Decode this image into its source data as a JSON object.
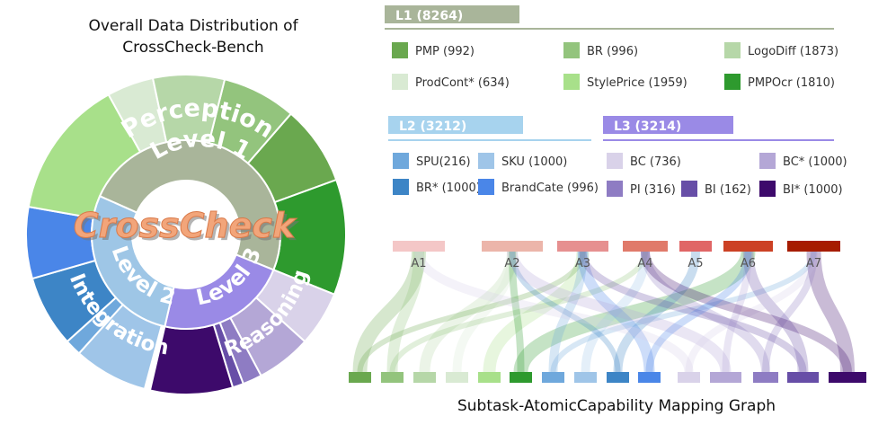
{
  "title_line1": "Overall Data Distribution of",
  "title_line2": "CrossCheck-Bench",
  "center_text": "CrossCheck",
  "levels": [
    {
      "label": "Level 1",
      "outer_label": "Perception",
      "color": "#a9b59a"
    },
    {
      "label": "Level 2",
      "outer_label": "Integration",
      "color": "#9ec6e6"
    },
    {
      "label": "Level 3",
      "outer_label": "Reasoning",
      "color": "#9a8ae6"
    }
  ],
  "groups": [
    {
      "header": "L1 (8264)",
      "header_color": "#a9b59a",
      "line_color": "#a9b59a",
      "items": [
        {
          "label": "PMP (992)",
          "color": "#6aa84f"
        },
        {
          "label": "BR (996)",
          "color": "#93c47d"
        },
        {
          "label": "LogoDiff (1873)",
          "color": "#b6d7a8"
        },
        {
          "label": "ProdCont* (634)",
          "color": "#d9ead3"
        },
        {
          "label": "StylePrice (1959)",
          "color": "#a8e08a"
        },
        {
          "label": "PMPOcr (1810)",
          "color": "#2e9a2e"
        }
      ]
    },
    {
      "header": "L2 (3212)",
      "header_color": "#a7d3ee",
      "line_color": "#a7d3ee",
      "items": [
        {
          "label": "SPU(216)",
          "color": "#6fa8dc"
        },
        {
          "label": "SKU (1000)",
          "color": "#9fc5e8"
        },
        {
          "label": "BR* (1000)",
          "color": "#3d85c6"
        },
        {
          "label": "BrandCate (996)",
          "color": "#4a86e8"
        }
      ]
    },
    {
      "header": "L3 (3214)",
      "header_color": "#9a8ae6",
      "line_color": "#9a8ae6",
      "items": [
        {
          "label": "BC (736)",
          "color": "#d9d2e9"
        },
        {
          "label": "BC* (1000)",
          "color": "#b4a7d6"
        },
        {
          "label": "PI (316)",
          "color": "#8e7cc3"
        },
        {
          "label": "BI (162)",
          "color": "#674ea7"
        },
        {
          "label": "BI* (1000)",
          "color": "#3d0a6b"
        }
      ]
    }
  ],
  "capabilities": [
    {
      "label": "A1",
      "color": "#f4c7c7"
    },
    {
      "label": "A2",
      "color": "#ecb5aa"
    },
    {
      "label": "A3",
      "color": "#e69090"
    },
    {
      "label": "A4",
      "color": "#e07a6a"
    },
    {
      "label": "A5",
      "color": "#e06666"
    },
    {
      "label": "A6",
      "color": "#cc4125"
    },
    {
      "label": "A7",
      "color": "#a61c00"
    }
  ],
  "sankey_title": "Subtask-AtomicCapability Mapping Graph"
}
